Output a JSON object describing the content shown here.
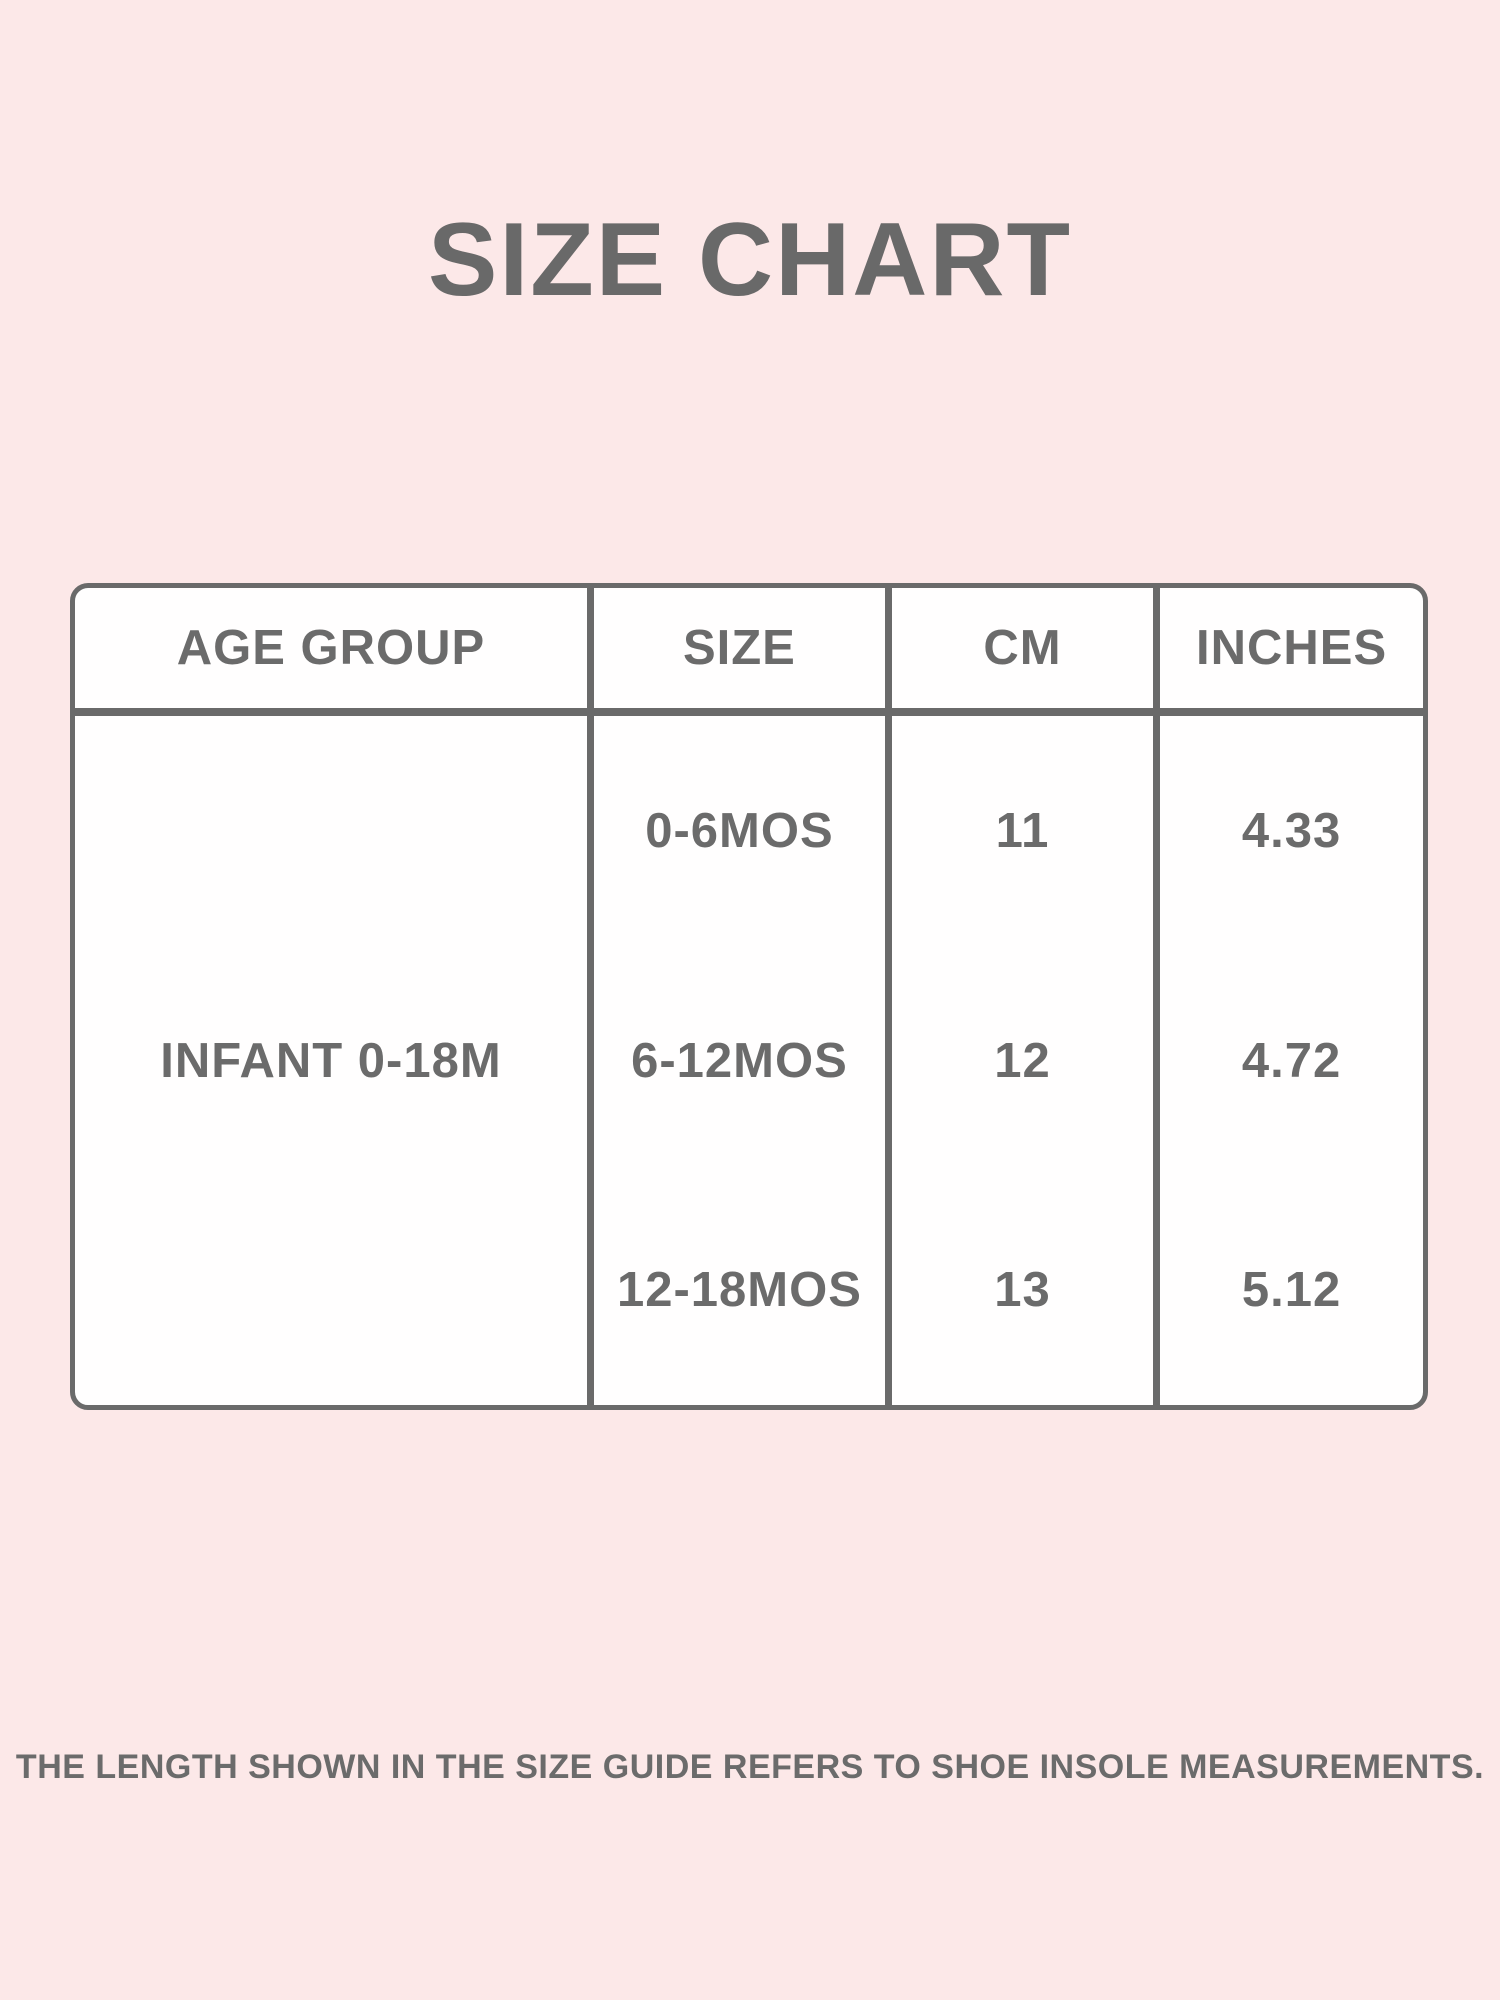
{
  "title": "SIZE CHART",
  "table": {
    "headers": [
      "AGE GROUP",
      "SIZE",
      "CM",
      "INCHES"
    ],
    "age_group": "INFANT 0-18M",
    "rows": [
      {
        "size": "0-6MOS",
        "cm": "11",
        "inches": "4.33"
      },
      {
        "size": "6-12MOS",
        "cm": "12",
        "inches": "4.72"
      },
      {
        "size": "12-18MOS",
        "cm": "13",
        "inches": "5.12"
      }
    ]
  },
  "footer": {
    "note": "THE LENGTH SHOWN IN THE SIZE GUIDE REFERS TO SHOE INSOLE MEASUREMENTS."
  },
  "colors": {
    "background": "#fce8e8",
    "text_gray": "#6b6b6b",
    "border_gray": "#6a6a6a",
    "cell_background": "#fffefe"
  },
  "chart_data": {
    "type": "table",
    "title": "SIZE CHART",
    "columns": [
      "AGE GROUP",
      "SIZE",
      "CM",
      "INCHES"
    ],
    "rows": [
      [
        "INFANT 0-18M",
        "0-6MOS",
        11,
        4.33
      ],
      [
        "INFANT 0-18M",
        "6-12MOS",
        12,
        4.72
      ],
      [
        "INFANT 0-18M",
        "12-18MOS",
        13,
        5.12
      ]
    ],
    "layout_hints": "AGE GROUP cell spans all three data rows; no horizontal rules between body rows; rounded outer border",
    "footnote": "THE LENGTH SHOWN IN THE SIZE GUIDE REFERS TO SHOE INSOLE MEASUREMENTS."
  }
}
